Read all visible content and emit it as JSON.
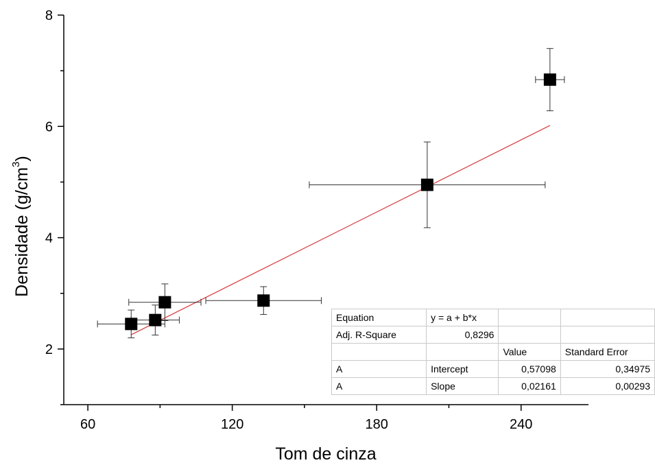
{
  "chart_data": {
    "type": "scatter",
    "title": "",
    "xlabel": "Tom de cinza",
    "ylabel_main": "Densidade (g/cm",
    "ylabel_sup": "3",
    "ylabel_close": ")",
    "xlim": [
      50,
      268
    ],
    "ylim": [
      1,
      8
    ],
    "xticks": [
      60,
      120,
      180,
      240
    ],
    "yticks": [
      2,
      4,
      6,
      8
    ],
    "grid": false,
    "points": [
      {
        "x": 78,
        "y": 2.45,
        "xerr": 14,
        "yerr": 0.25
      },
      {
        "x": 88,
        "y": 2.52,
        "xerr": 10,
        "yerr": 0.27
      },
      {
        "x": 92,
        "y": 2.84,
        "xerr": 15,
        "yerr": 0.33
      },
      {
        "x": 133,
        "y": 2.87,
        "xerr": 24,
        "yerr": 0.25
      },
      {
        "x": 201,
        "y": 4.95,
        "xerr": 49,
        "yerr": 0.77
      },
      {
        "x": 252,
        "y": 6.84,
        "xerr": 6,
        "yerr": 0.56
      }
    ],
    "fit": {
      "intercept": 0.57098,
      "slope": 0.02161,
      "x_range": [
        78,
        252
      ],
      "color": "#d9383a"
    }
  },
  "fit_table": {
    "rows": [
      [
        "Equation",
        "y = a + b*x",
        "",
        ""
      ],
      [
        "Adj. R-Square",
        "0,8296",
        "",
        ""
      ],
      [
        "",
        "",
        "Value",
        "Standard Error"
      ],
      [
        "A",
        "Intercept",
        "0,57098",
        "0,34975"
      ],
      [
        "A",
        "Slope",
        "0,02161",
        "0,00293"
      ]
    ]
  }
}
